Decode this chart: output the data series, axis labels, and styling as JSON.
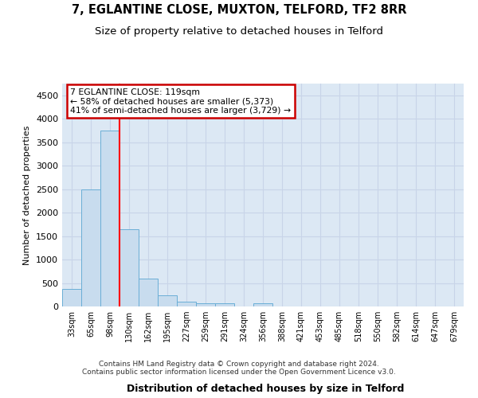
{
  "title": "7, EGLANTINE CLOSE, MUXTON, TELFORD, TF2 8RR",
  "subtitle": "Size of property relative to detached houses in Telford",
  "xlabel": "Distribution of detached houses by size in Telford",
  "ylabel": "Number of detached properties",
  "bin_labels": [
    "33sqm",
    "65sqm",
    "98sqm",
    "130sqm",
    "162sqm",
    "195sqm",
    "227sqm",
    "259sqm",
    "291sqm",
    "324sqm",
    "356sqm",
    "388sqm",
    "421sqm",
    "453sqm",
    "485sqm",
    "518sqm",
    "550sqm",
    "582sqm",
    "614sqm",
    "647sqm",
    "679sqm"
  ],
  "bar_values": [
    380,
    2500,
    3750,
    1640,
    590,
    240,
    110,
    60,
    60,
    0,
    70,
    0,
    0,
    0,
    0,
    0,
    0,
    0,
    0,
    0,
    0
  ],
  "bar_color": "#c8dcee",
  "bar_edge_color": "#6aaed6",
  "annotation_text": "7 EGLANTINE CLOSE: 119sqm\n← 58% of detached houses are smaller (5,373)\n41% of semi-detached houses are larger (3,729) →",
  "annotation_box_color": "#ffffff",
  "annotation_box_edge_color": "#cc0000",
  "ylim": [
    0,
    4750
  ],
  "yticks": [
    0,
    500,
    1000,
    1500,
    2000,
    2500,
    3000,
    3500,
    4000,
    4500
  ],
  "grid_color": "#c8d4e8",
  "background_color": "#dce8f4",
  "footer_text": "Contains HM Land Registry data © Crown copyright and database right 2024.\nContains public sector information licensed under the Open Government Licence v3.0.",
  "title_fontsize": 10.5,
  "subtitle_fontsize": 9.5
}
